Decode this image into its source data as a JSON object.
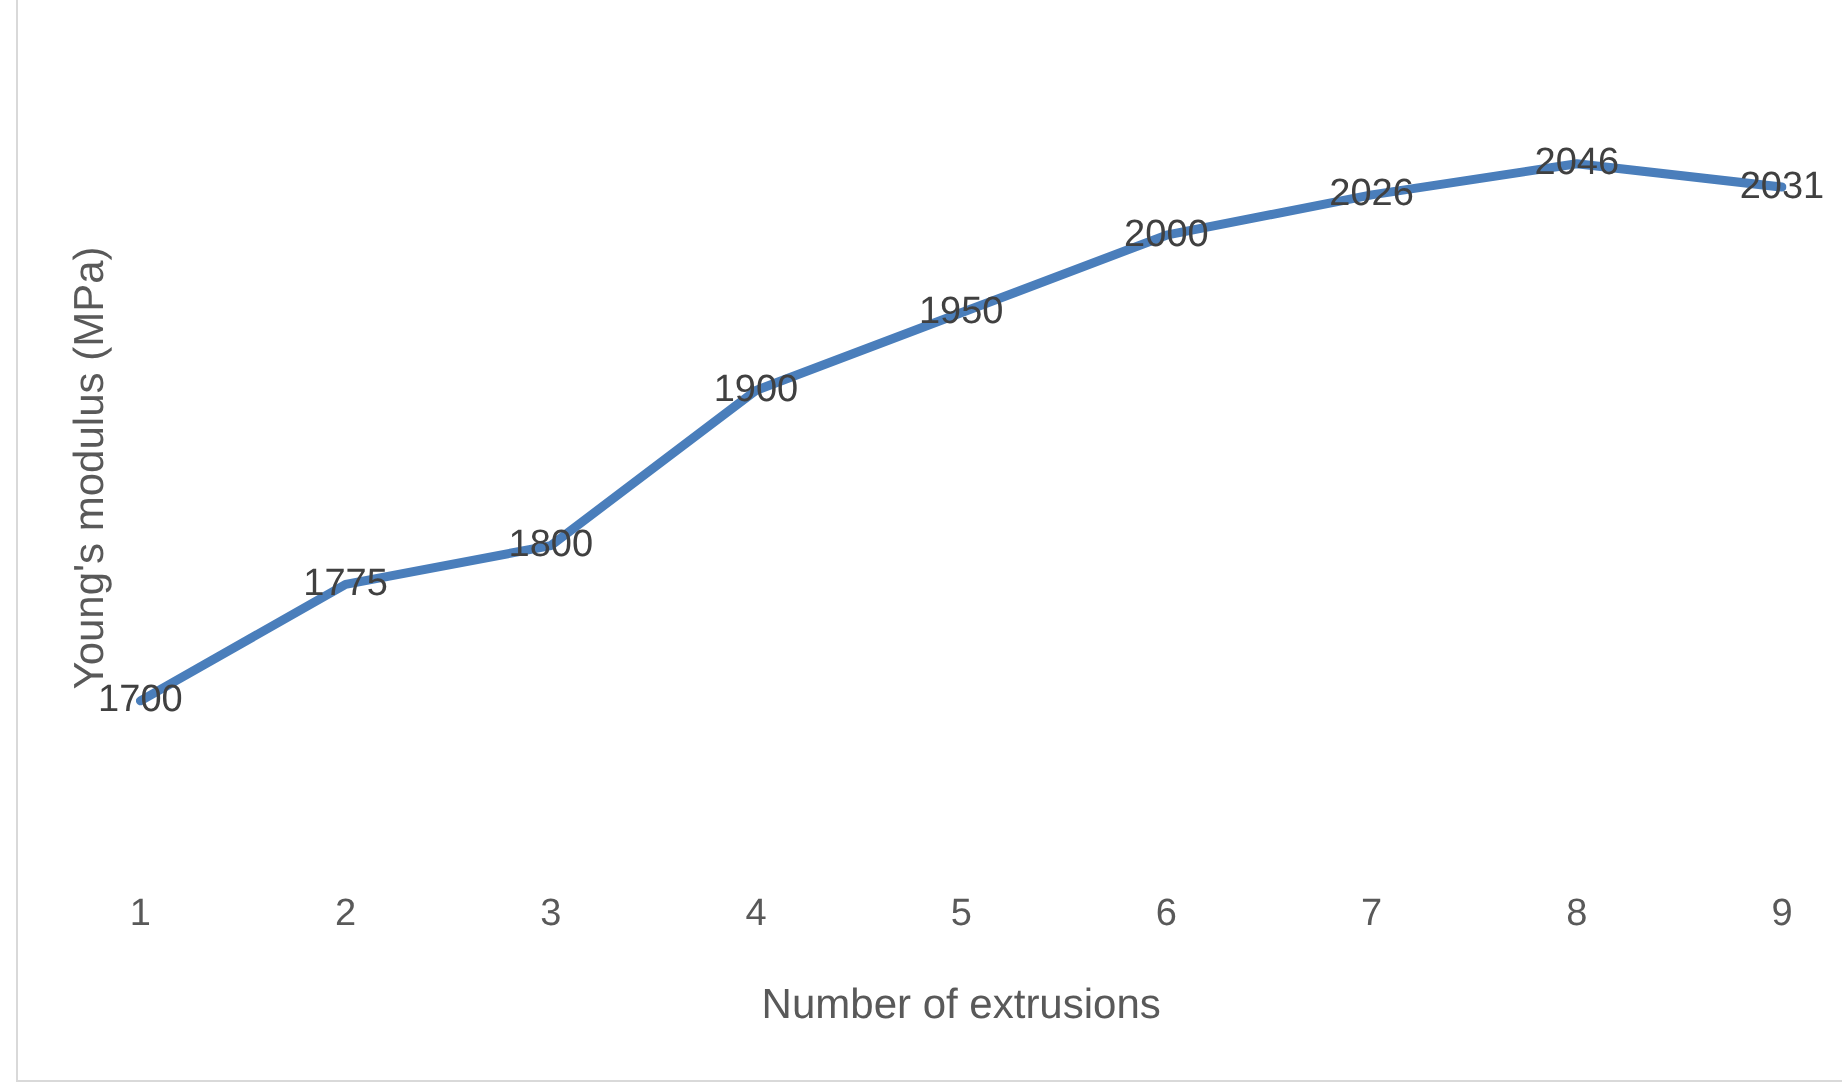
{
  "chart_data": {
    "type": "line",
    "xlabel": "Number of extrusions",
    "ylabel": "Young's modulus (MPa)",
    "categories": [
      "1",
      "2",
      "3",
      "4",
      "5",
      "6",
      "7",
      "8",
      "9"
    ],
    "series": [
      {
        "color": "#4a7ebb",
        "values": [
          1700,
          1775,
          1800,
          1900,
          1950,
          2000,
          2026,
          2046,
          2031
        ]
      }
    ],
    "data_labels": true,
    "marker": "none",
    "grid": false,
    "legend": false,
    "tick_labels": "x"
  }
}
